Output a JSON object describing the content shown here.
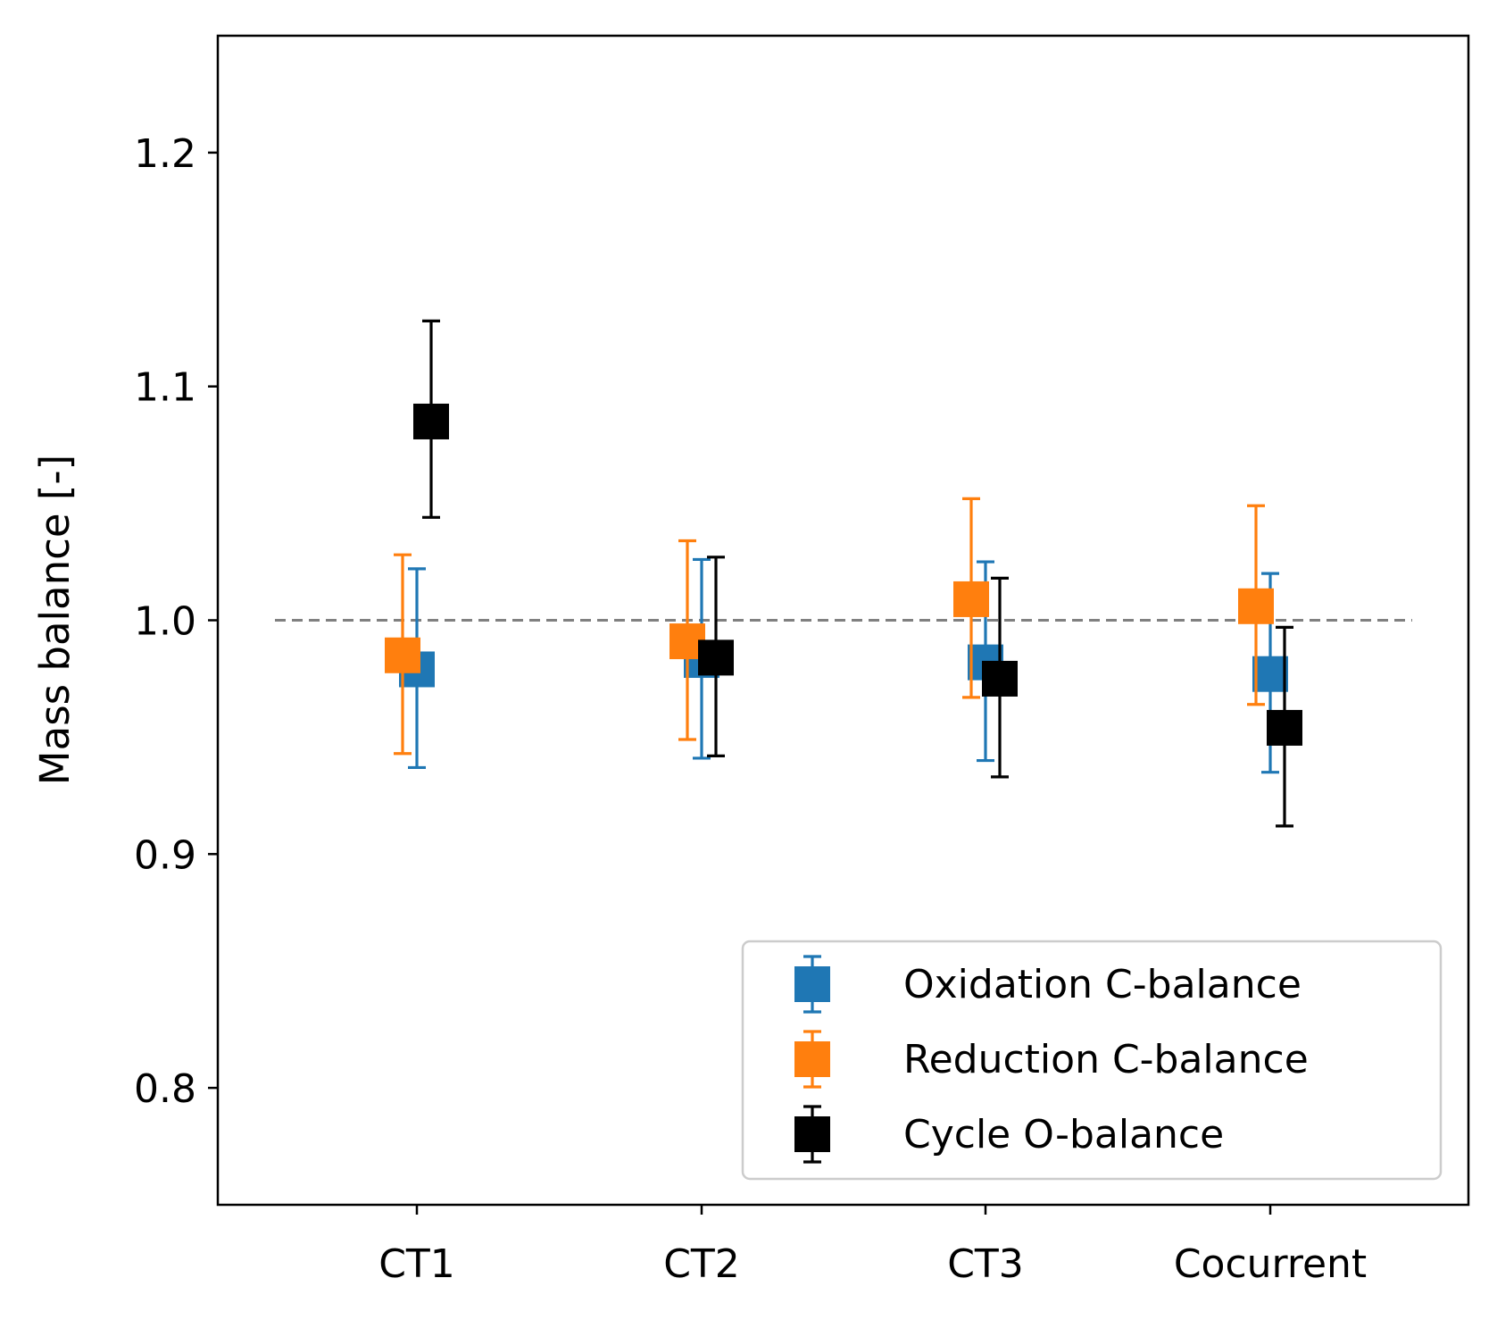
{
  "chart_data": {
    "type": "scatter",
    "title": "",
    "xlabel": "",
    "ylabel": "Mass balance [-]",
    "categories": [
      "CT1",
      "CT2",
      "CT3",
      "Cocurrent"
    ],
    "ylim": [
      0.75,
      1.25
    ],
    "yticks": [
      0.8,
      0.9,
      1.0,
      1.1,
      1.2
    ],
    "ytick_labels": [
      "0.8",
      "0.9",
      "1.0",
      "1.1",
      "1.2"
    ],
    "reference_line": {
      "y": 1.0,
      "style": "dashed",
      "color": "#808080"
    },
    "grid": false,
    "legend_position": "lower-right",
    "marker": "square",
    "series": [
      {
        "name": "Oxidation C-balance",
        "color": "#1f77b4",
        "values": [
          0.979,
          0.983,
          0.982,
          0.977
        ],
        "err_low": [
          0.937,
          0.941,
          0.94,
          0.935
        ],
        "err_high": [
          1.022,
          1.026,
          1.025,
          1.02
        ]
      },
      {
        "name": "Reduction C-balance",
        "color": "#ff7f0e",
        "values": [
          0.985,
          0.991,
          1.009,
          1.006
        ],
        "err_low": [
          0.943,
          0.949,
          0.967,
          0.964
        ],
        "err_high": [
          1.028,
          1.034,
          1.052,
          1.049
        ]
      },
      {
        "name": "Cycle O-balance",
        "color": "#000000",
        "values": [
          1.085,
          0.984,
          0.975,
          0.954
        ],
        "err_low": [
          1.044,
          0.942,
          0.933,
          0.912
        ],
        "err_high": [
          1.128,
          1.027,
          1.018,
          0.997
        ]
      }
    ]
  }
}
